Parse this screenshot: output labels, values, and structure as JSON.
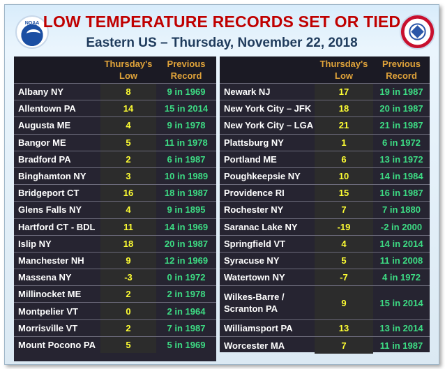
{
  "title": "LOW TEMPERATURE RECORDS SET OR TIED",
  "subtitle": "Eastern US – Thursday, November 22, 2018",
  "noaa_logo_text": "NOAA",
  "headers": {
    "low_line1": "Thursday's",
    "low_line2": "Low",
    "rec_line1": "Previous",
    "rec_line2": "Record"
  },
  "left_rows": [
    {
      "city": "Albany NY",
      "low": "8",
      "record": "9 in 1969"
    },
    {
      "city": "Allentown PA",
      "low": "14",
      "record": "15 in 2014"
    },
    {
      "city": "Augusta ME",
      "low": "4",
      "record": "9 in 1978"
    },
    {
      "city": "Bangor ME",
      "low": "5",
      "record": "11 in 1978"
    },
    {
      "city": "Bradford PA",
      "low": "2",
      "record": "6 in 1987"
    },
    {
      "city": "Binghamton NY",
      "low": "3",
      "record": "10 in 1989"
    },
    {
      "city": "Bridgeport CT",
      "low": "16",
      "record": "18 in 1987"
    },
    {
      "city": "Glens Falls NY",
      "low": "4",
      "record": "9 in 1895"
    },
    {
      "city": "Hartford CT - BDL",
      "low": "11",
      "record": "14 in 1969"
    },
    {
      "city": "Islip NY",
      "low": "18",
      "record": "20 in 1987"
    },
    {
      "city": "Manchester NH",
      "low": "9",
      "record": "12 in 1969"
    },
    {
      "city": "Massena NY",
      "low": "-3",
      "record": "0 in 1972"
    },
    {
      "city": "Millinocket ME",
      "low": "2",
      "record": "2 in 1978"
    },
    {
      "city": "Montpelier VT",
      "low": "0",
      "record": "2 in 1964"
    },
    {
      "city": "Morrisville VT",
      "low": "2",
      "record": "7 in 1987"
    },
    {
      "city": "Mount Pocono PA",
      "low": "5",
      "record": "5 in 1969"
    }
  ],
  "right_rows": [
    {
      "city": "Newark NJ",
      "low": "17",
      "record": "19 in 1987"
    },
    {
      "city": "New York City – JFK",
      "low": "18",
      "record": "20 in 1987"
    },
    {
      "city": "New York City – LGA",
      "low": "21",
      "record": "21 in 1987"
    },
    {
      "city": "Plattsburg NY",
      "low": "1",
      "record": "6 in 1972"
    },
    {
      "city": "Portland ME",
      "low": "6",
      "record": "13 in 1972"
    },
    {
      "city": "Poughkeepsie NY",
      "low": "10",
      "record": "14 in 1984"
    },
    {
      "city": "Providence RI",
      "low": "15",
      "record": "16 in 1987"
    },
    {
      "city": "Rochester NY",
      "low": "7",
      "record": "7 in 1880"
    },
    {
      "city": "Saranac Lake NY",
      "low": "-19",
      "record": "-2 in 2000"
    },
    {
      "city": "Springfield VT",
      "low": "4",
      "record": "14 in 2014"
    },
    {
      "city": "Syracuse NY",
      "low": "5",
      "record": "11 in 2008"
    },
    {
      "city": "Watertown NY",
      "low": "-7",
      "record": "4 in 1972"
    },
    {
      "city": "Wilkes-Barre / Scranton PA",
      "city_line1": "Wilkes-Barre /",
      "city_line2": "Scranton PA",
      "low": "9",
      "record": "15 in 2014"
    },
    {
      "city": "Williamsport PA",
      "low": "13",
      "record": "13 in 2014"
    },
    {
      "city": "Worcester MA",
      "low": "7",
      "record": "11 in 1987"
    }
  ]
}
